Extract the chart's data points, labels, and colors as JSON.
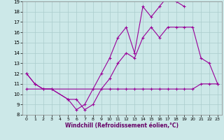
{
  "background_color": "#cce8e8",
  "grid_color": "#aacccc",
  "line_color": "#990099",
  "xlabel": "Windchill (Refroidissement éolien,°C)",
  "xlim": [
    0,
    23
  ],
  "ylim": [
    8,
    19
  ],
  "yticks": [
    8,
    9,
    10,
    11,
    12,
    13,
    14,
    15,
    16,
    17,
    18,
    19
  ],
  "xticks": [
    0,
    1,
    2,
    3,
    4,
    5,
    6,
    7,
    8,
    9,
    10,
    11,
    12,
    13,
    14,
    15,
    16,
    17,
    18,
    19,
    20,
    21,
    22,
    23
  ],
  "series1_x": [
    0,
    1,
    2,
    3,
    5,
    6,
    7,
    8,
    9,
    10,
    11,
    12,
    13,
    14,
    15,
    16,
    17,
    18,
    19
  ],
  "series1_y": [
    12,
    11,
    10.5,
    10.5,
    9.5,
    8.5,
    9.0,
    10.5,
    12.0,
    13.5,
    15.5,
    16.5,
    14.0,
    18.5,
    17.5,
    18.5,
    19.5,
    19.0,
    18.5
  ],
  "series2_x": [
    0,
    1,
    2,
    3,
    5,
    6,
    7,
    8,
    9,
    10,
    11,
    12,
    13,
    14,
    15,
    16,
    17,
    18,
    19,
    20,
    21,
    22,
    23
  ],
  "series2_y": [
    12,
    11,
    10.5,
    10.5,
    9.5,
    9.5,
    8.5,
    9.0,
    10.5,
    11.5,
    13.0,
    14.0,
    13.5,
    15.5,
    16.5,
    15.5,
    16.5,
    16.5,
    16.5,
    16.5,
    13.5,
    13.0,
    11.0
  ],
  "series3_x": [
    0,
    10,
    11,
    12,
    13,
    14,
    15,
    16,
    17,
    18,
    19,
    20,
    21,
    22,
    23
  ],
  "series3_y": [
    10.5,
    10.5,
    10.5,
    10.5,
    10.5,
    10.5,
    10.5,
    10.5,
    10.5,
    10.5,
    10.5,
    10.5,
    11.0,
    11.0,
    11.0
  ]
}
